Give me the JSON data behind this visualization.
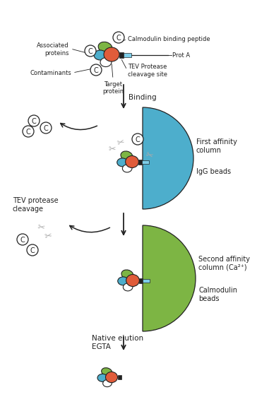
{
  "background_color": "#ffffff",
  "colors": {
    "blue": "#4DAECC",
    "green": "#7DB544",
    "red": "#E05C3A",
    "white": "#ffffff",
    "black": "#000000",
    "dark_black": "#222222",
    "light_blue": "#7DCDE8",
    "gray": "#aaaaaa"
  },
  "text": {
    "calmodulin_binding": "Calmodulin binding peptide",
    "prot_a": "Prot A",
    "tev_site": "TEV Protease\ncleavage site",
    "associated": "Associated\nproteins",
    "contaminants": "Contaminants",
    "target": "Target\nprotein",
    "binding": "Binding",
    "first_affinity": "First affinity\ncolumn",
    "igg_beads": "IgG beads",
    "tev_cleavage": "TEV protease\ncleavage",
    "second_affinity": "Second affinity\ncolumn (Ca²⁺)",
    "calmodulin_beads": "Calmodulin\nbeads",
    "native_elution": "Native elution\nEGTA"
  }
}
